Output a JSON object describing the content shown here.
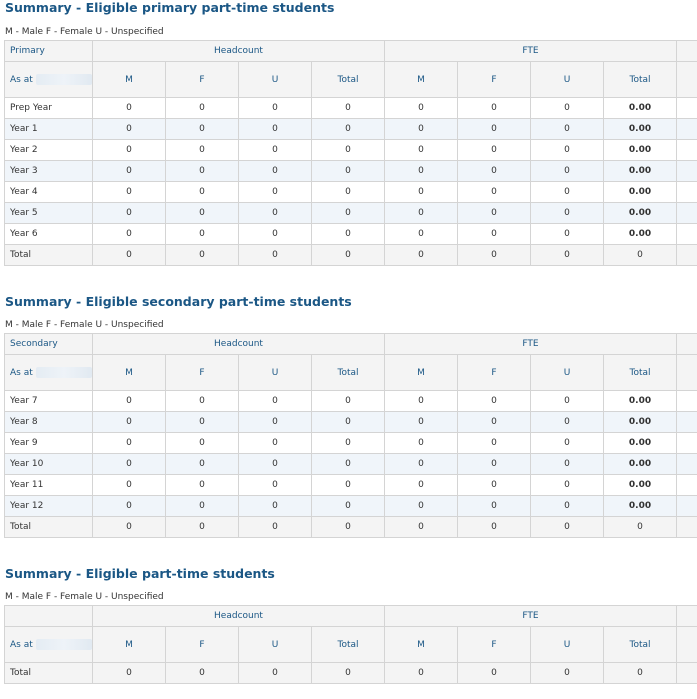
{
  "legend": "M - Male  F - Female  U - Unspecified",
  "headcount_label": "Headcount",
  "fte_label": "FTE",
  "as_at_label": "As at",
  "col_labels": [
    "M",
    "F",
    "U",
    "Total",
    "M",
    "F",
    "U",
    "Total"
  ],
  "primary": {
    "title": "Summary - Eligible primary part-time students",
    "group_label": "Primary",
    "rows": [
      {
        "label": "Prep Year",
        "values": [
          "0",
          "0",
          "0",
          "0",
          "0",
          "0",
          "0",
          "0.00"
        ]
      },
      {
        "label": "Year 1",
        "values": [
          "0",
          "0",
          "0",
          "0",
          "0",
          "0",
          "0",
          "0.00"
        ]
      },
      {
        "label": "Year 2",
        "values": [
          "0",
          "0",
          "0",
          "0",
          "0",
          "0",
          "0",
          "0.00"
        ]
      },
      {
        "label": "Year 3",
        "values": [
          "0",
          "0",
          "0",
          "0",
          "0",
          "0",
          "0",
          "0.00"
        ]
      },
      {
        "label": "Year 4",
        "values": [
          "0",
          "0",
          "0",
          "0",
          "0",
          "0",
          "0",
          "0.00"
        ]
      },
      {
        "label": "Year 5",
        "values": [
          "0",
          "0",
          "0",
          "0",
          "0",
          "0",
          "0",
          "0.00"
        ]
      },
      {
        "label": "Year 6",
        "values": [
          "0",
          "0",
          "0",
          "0",
          "0",
          "0",
          "0",
          "0.00"
        ]
      }
    ],
    "total": {
      "label": "Total",
      "values": [
        "0",
        "0",
        "0",
        "0",
        "0",
        "0",
        "0",
        "0"
      ]
    }
  },
  "secondary": {
    "title": "Summary - Eligible secondary part-time students",
    "group_label": "Secondary",
    "rows": [
      {
        "label": "Year 7",
        "values": [
          "0",
          "0",
          "0",
          "0",
          "0",
          "0",
          "0",
          "0.00"
        ]
      },
      {
        "label": "Year 8",
        "values": [
          "0",
          "0",
          "0",
          "0",
          "0",
          "0",
          "0",
          "0.00"
        ]
      },
      {
        "label": "Year 9",
        "values": [
          "0",
          "0",
          "0",
          "0",
          "0",
          "0",
          "0",
          "0.00"
        ]
      },
      {
        "label": "Year 10",
        "values": [
          "0",
          "0",
          "0",
          "0",
          "0",
          "0",
          "0",
          "0.00"
        ]
      },
      {
        "label": "Year 11",
        "values": [
          "0",
          "0",
          "0",
          "0",
          "0",
          "0",
          "0",
          "0.00"
        ]
      },
      {
        "label": "Year 12",
        "values": [
          "0",
          "0",
          "0",
          "0",
          "0",
          "0",
          "0",
          "0.00"
        ]
      }
    ],
    "total": {
      "label": "Total",
      "values": [
        "0",
        "0",
        "0",
        "0",
        "0",
        "0",
        "0",
        "0"
      ]
    }
  },
  "overall": {
    "title": "Summary - Eligible part-time students",
    "group_label": "",
    "rows": [],
    "total": {
      "label": "Total",
      "values": [
        "0",
        "0",
        "0",
        "0",
        "0",
        "0",
        "0",
        "0"
      ]
    }
  }
}
